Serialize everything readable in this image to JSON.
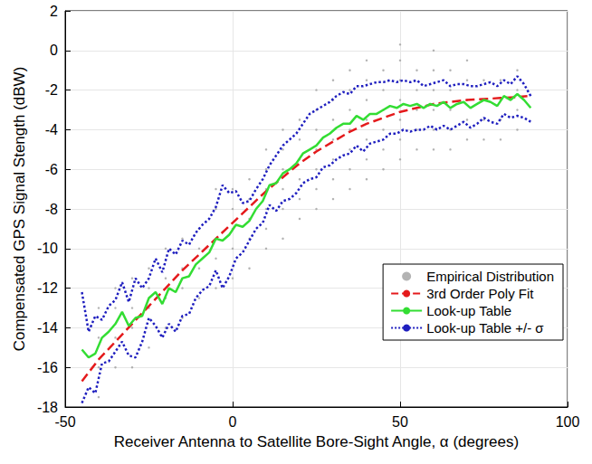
{
  "chart_data": {
    "type": "line",
    "x_label": "Receiver Antenna to Satellite Bore-Sight Angle, α (degrees)",
    "y_label": "Compensated GPS Signal Stength (dBW)",
    "xlim": [
      -50,
      100
    ],
    "xticks": [
      -50,
      0,
      50,
      100
    ],
    "ylim": [
      -18,
      2
    ],
    "yticks": [
      -18,
      -16,
      -14,
      -12,
      -10,
      -8,
      -6,
      -4,
      -2,
      0,
      2
    ],
    "grid": true,
    "legend": "right",
    "series": [
      {
        "name": "Empirical Distribution",
        "type": "scatter",
        "marker": "dot",
        "color": "#a0a0a0",
        "x": [
          -40,
          -40,
          -40,
          -40,
          -35,
          -35,
          -35,
          -35,
          -30,
          -30,
          -30,
          -30,
          -25,
          -25,
          -25,
          -25,
          -20,
          -20,
          -20,
          -20,
          -15,
          -15,
          -15,
          -15,
          -10,
          -10,
          -10,
          -10,
          -5,
          -5,
          -5,
          -5,
          -5,
          0,
          0,
          0,
          0,
          0,
          5,
          5,
          5,
          5,
          5,
          10,
          10,
          10,
          10,
          10,
          10,
          15,
          15,
          15,
          15,
          15,
          15,
          20,
          20,
          20,
          20,
          20,
          20,
          25,
          25,
          25,
          25,
          25,
          25,
          25,
          30,
          30,
          30,
          30,
          30,
          30,
          30,
          35,
          35,
          35,
          35,
          35,
          35,
          35,
          40,
          40,
          40,
          40,
          40,
          40,
          40,
          45,
          45,
          45,
          45,
          45,
          45,
          50,
          50,
          50,
          50,
          50,
          50,
          50,
          55,
          55,
          55,
          55,
          55,
          60,
          60,
          60,
          60,
          60,
          60,
          65,
          65,
          65,
          65,
          65,
          70,
          70,
          70,
          70,
          70,
          75,
          75,
          75,
          75,
          80,
          80,
          80,
          80,
          85,
          85,
          85,
          85
        ],
        "values": [
          -17.5,
          -16,
          -14.5,
          -13,
          -16,
          -14.5,
          -13,
          -12,
          -16,
          -14,
          -13,
          -11.5,
          -15,
          -13,
          -12,
          -11,
          -14,
          -12.5,
          -11.5,
          -10,
          -13.5,
          -12,
          -11,
          -9.5,
          -12.5,
          -11,
          -10,
          -9,
          -12,
          -10.5,
          -9.5,
          -8,
          -7,
          -11.5,
          -10,
          -9,
          -8,
          -7,
          -11,
          -9.5,
          -8.5,
          -7.5,
          -6.5,
          -10,
          -9,
          -8,
          -7,
          -6,
          -5,
          -9.5,
          -8,
          -7,
          -6,
          -5,
          -4,
          -8.5,
          -7.5,
          -6.5,
          -5.5,
          -4.5,
          -3.5,
          -8,
          -7,
          -6,
          -5,
          -4,
          -3,
          -2,
          -7.5,
          -6.5,
          -5.5,
          -4.5,
          -3.5,
          -2.5,
          -1.5,
          -7,
          -6,
          -5,
          -4,
          -3,
          -2,
          -1,
          -6.5,
          -5.5,
          -4.5,
          -3.5,
          -2.5,
          -1.5,
          -0.5,
          -6,
          -5,
          -4,
          -3,
          -2,
          -1,
          -5.5,
          -4.5,
          -3.5,
          -2.5,
          -1.5,
          -0.5,
          0.3,
          -5,
          -4,
          -3,
          -2,
          -1,
          -5,
          -4,
          -3,
          -2,
          -1,
          0,
          -5,
          -4,
          -3,
          -2,
          -1,
          -4.5,
          -3.5,
          -2.5,
          -1.5,
          -0.5,
          -4.5,
          -3.5,
          -2.5,
          -1.5,
          -4.5,
          -3.5,
          -2.5,
          -1.5,
          -4,
          -3,
          -2,
          -1
        ]
      },
      {
        "name": "3rd Order Poly Fit",
        "type": "line",
        "line_style": "dashed",
        "color": "#e41a1c",
        "x": [
          -45,
          -40,
          -35,
          -30,
          -25,
          -20,
          -15,
          -10,
          -5,
          0,
          5,
          10,
          15,
          20,
          25,
          30,
          35,
          40,
          45,
          50,
          55,
          60,
          65,
          70,
          75,
          80,
          85,
          88
        ],
        "values": [
          -16.7,
          -15.6,
          -14.7,
          -13.8,
          -12.9,
          -12.0,
          -11.1,
          -10.3,
          -9.5,
          -8.7,
          -7.9,
          -7.1,
          -6.4,
          -5.7,
          -5.1,
          -4.6,
          -4.1,
          -3.7,
          -3.4,
          -3.1,
          -2.9,
          -2.7,
          -2.6,
          -2.5,
          -2.45,
          -2.4,
          -2.35,
          -2.3
        ]
      },
      {
        "name": "Look-up Table",
        "type": "line",
        "line_style": "solid",
        "color": "#33dd33",
        "x": [
          -45,
          -43,
          -41,
          -39,
          -37,
          -35,
          -33,
          -31,
          -29,
          -27,
          -25,
          -23,
          -21,
          -19,
          -17,
          -15,
          -13,
          -11,
          -9,
          -7,
          -5,
          -3,
          -1,
          1,
          3,
          5,
          7,
          9,
          11,
          13,
          15,
          17,
          19,
          21,
          23,
          25,
          27,
          29,
          31,
          33,
          35,
          37,
          39,
          41,
          43,
          45,
          47,
          49,
          51,
          53,
          55,
          57,
          59,
          61,
          63,
          65,
          67,
          69,
          71,
          73,
          75,
          77,
          79,
          81,
          83,
          85,
          87,
          89
        ],
        "values": [
          -15.1,
          -15.5,
          -15.3,
          -14.5,
          -14.2,
          -13.8,
          -13.2,
          -13.9,
          -13.5,
          -13.4,
          -12.5,
          -12.2,
          -12.8,
          -12.0,
          -12.2,
          -11.5,
          -11.4,
          -10.8,
          -10.5,
          -10.2,
          -9.5,
          -9.6,
          -9.3,
          -8.8,
          -8.9,
          -8.6,
          -8.0,
          -7.6,
          -6.8,
          -6.7,
          -6.2,
          -6.0,
          -5.7,
          -5.2,
          -5.0,
          -4.8,
          -4.4,
          -4.2,
          -3.9,
          -3.7,
          -3.7,
          -3.3,
          -3.5,
          -3.2,
          -3.2,
          -3.0,
          -2.8,
          -2.9,
          -2.7,
          -2.8,
          -2.7,
          -2.9,
          -2.7,
          -2.8,
          -2.6,
          -2.9,
          -2.7,
          -2.6,
          -2.9,
          -2.7,
          -2.5,
          -2.6,
          -2.8,
          -2.3,
          -2.5,
          -2.2,
          -2.5,
          -2.9
        ]
      },
      {
        "name": "Look-up Table +/- σ",
        "type": "line",
        "line_style": "dotted",
        "color": "#1f1fbf",
        "x": [
          -45,
          -43,
          -41,
          -39,
          -37,
          -35,
          -33,
          -31,
          -29,
          -27,
          -25,
          -23,
          -21,
          -19,
          -17,
          -15,
          -13,
          -11,
          -9,
          -7,
          -5,
          -3,
          -1,
          1,
          3,
          5,
          7,
          9,
          11,
          13,
          15,
          17,
          19,
          21,
          23,
          25,
          27,
          29,
          31,
          33,
          35,
          37,
          39,
          41,
          43,
          45,
          47,
          49,
          51,
          53,
          55,
          57,
          59,
          61,
          63,
          65,
          67,
          69,
          71,
          73,
          75,
          77,
          79,
          81,
          83,
          85,
          87,
          89
        ],
        "values": [
          -12.2,
          -14.2,
          -13.4,
          -13.6,
          -12.9,
          -12.6,
          -11.7,
          -12.7,
          -11.5,
          -12.0,
          -11.5,
          -10.5,
          -11.2,
          -10.0,
          -10.3,
          -9.6,
          -9.8,
          -9.2,
          -8.8,
          -8.5,
          -7.9,
          -6.8,
          -7.2,
          -7.1,
          -7.7,
          -7.6,
          -7.0,
          -6.5,
          -5.8,
          -5.3,
          -4.8,
          -4.5,
          -4.2,
          -3.7,
          -3.2,
          -3.0,
          -2.8,
          -2.6,
          -2.3,
          -2.1,
          -2.2,
          -1.8,
          -1.8,
          -1.7,
          -1.6,
          -1.6,
          -1.5,
          -1.6,
          -1.5,
          -1.6,
          -1.5,
          -1.8,
          -1.7,
          -1.6,
          -1.5,
          -1.8,
          -1.7,
          -1.7,
          -1.8,
          -1.8,
          -1.7,
          -1.6,
          -1.8,
          -1.5,
          -1.7,
          -1.3,
          -1.7,
          -2.3
        ]
      },
      {
        "name": "Look-up Table +/- σ",
        "type": "line",
        "line_style": "dotted",
        "color": "#1f1fbf",
        "x": [
          -45,
          -43,
          -41,
          -39,
          -37,
          -35,
          -33,
          -31,
          -29,
          -27,
          -25,
          -23,
          -21,
          -19,
          -17,
          -15,
          -13,
          -11,
          -9,
          -7,
          -5,
          -3,
          -1,
          1,
          3,
          5,
          7,
          9,
          11,
          13,
          15,
          17,
          19,
          21,
          23,
          25,
          27,
          29,
          31,
          33,
          35,
          37,
          39,
          41,
          43,
          45,
          47,
          49,
          51,
          53,
          55,
          57,
          59,
          61,
          63,
          65,
          67,
          69,
          71,
          73,
          75,
          77,
          79,
          81,
          83,
          85,
          87,
          89
        ],
        "values": [
          -17.8,
          -17.0,
          -17.3,
          -15.8,
          -15.7,
          -15.2,
          -14.7,
          -15.4,
          -15.5,
          -14.7,
          -13.5,
          -13.9,
          -14.5,
          -13.8,
          -14.2,
          -13.4,
          -13.3,
          -12.5,
          -12.1,
          -11.9,
          -11.1,
          -12.0,
          -11.4,
          -10.5,
          -10.2,
          -9.6,
          -9.0,
          -8.7,
          -7.8,
          -8.1,
          -7.6,
          -7.5,
          -7.2,
          -6.7,
          -6.5,
          -6.4,
          -5.9,
          -5.8,
          -5.5,
          -5.3,
          -5.2,
          -4.8,
          -5.1,
          -4.7,
          -4.6,
          -4.5,
          -4.2,
          -4.2,
          -4.0,
          -4.1,
          -4.0,
          -4.0,
          -3.8,
          -4.0,
          -3.8,
          -4.0,
          -3.8,
          -3.6,
          -3.9,
          -3.7,
          -3.4,
          -3.6,
          -3.7,
          -3.2,
          -3.4,
          -3.3,
          -3.4,
          -3.6
        ]
      }
    ]
  }
}
